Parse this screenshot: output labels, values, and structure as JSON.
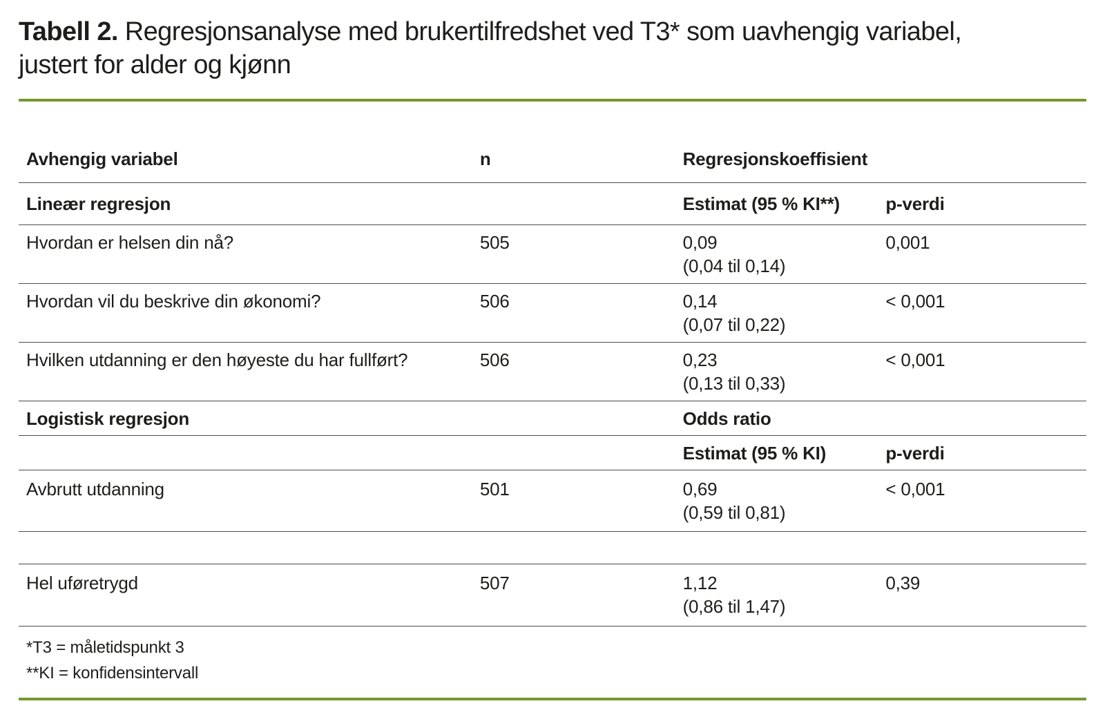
{
  "page": {
    "title_label": "Tabell 2.",
    "title_text": " Regresjonsanalyse med brukertilfredshet ved T3* som uavhengig variabel, justert for alder og kjønn"
  },
  "colors": {
    "accent_green": "#76982d",
    "rule_gray": "#4a4a4a",
    "text": "#1d1d1b",
    "background": "#ffffff"
  },
  "table": {
    "columns": {
      "col1": "Avhengig variabel",
      "col2": "n",
      "col3": "Regresjonskoeffisient",
      "col4": ""
    },
    "rows": [
      {
        "variable": "Lineær regresjon",
        "n": "",
        "estimate": "Estimat (95 % KI**)",
        "ci": "",
        "p": "p-verdi"
      },
      {
        "variable": "Hvordan er helsen din nå?",
        "n": "505",
        "estimate": "0,09",
        "ci": "(0,04 til 0,14)",
        "p": "0,001"
      },
      {
        "variable": "Hvordan vil du beskrive din økonomi?",
        "n": "506",
        "estimate": "0,14",
        "ci": "(0,07 til 0,22)",
        "p": "< 0,001"
      },
      {
        "variable": "Hvilken utdanning er den høyeste du har fullført?",
        "n": "506",
        "estimate": "0,23",
        "ci": "(0,13 til 0,33)",
        "p": "< 0,001"
      },
      {
        "variable": "Logistisk regresjon",
        "n": "",
        "estimate": "Odds ratio",
        "ci": "",
        "p": ""
      },
      {
        "variable": "",
        "n": "",
        "estimate": "Estimat (95 % KI)",
        "ci": "",
        "p": "p-verdi"
      },
      {
        "variable": "Avbrutt utdanning",
        "n": "501",
        "estimate": "0,69",
        "ci": "(0,59 til 0,81)",
        "p": "< 0,001"
      },
      {
        "variable": "",
        "n": "",
        "estimate": "",
        "ci": "",
        "p": ""
      },
      {
        "variable": "Hel uføretrygd",
        "n": "507",
        "estimate": "1,12",
        "ci": "(0,86 til 1,47)",
        "p": "0,39"
      }
    ]
  },
  "footnotes": {
    "line1": "*T3 = måletidspunkt 3",
    "line2": "**KI = konfidensintervall"
  }
}
